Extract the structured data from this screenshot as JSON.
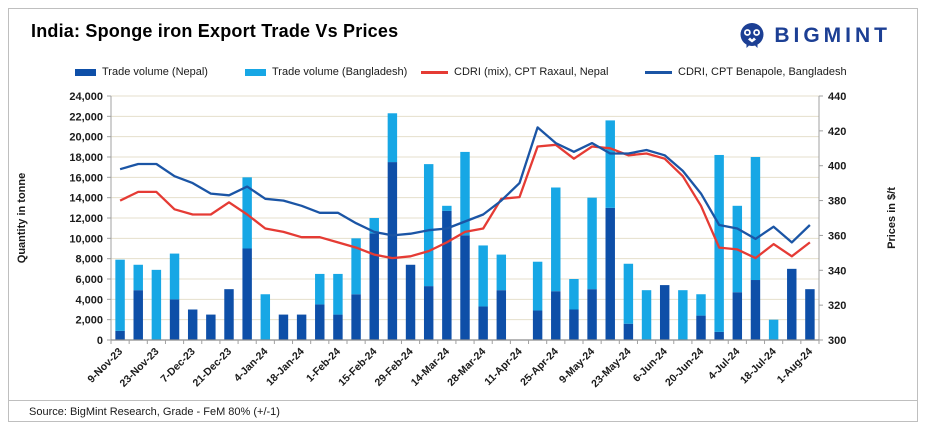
{
  "card": {
    "title": "India: Sponge iron Export Trade Vs Prices",
    "brand": {
      "logo_icon": "bigmint-mascot-icon",
      "logo_text": "BIGMINT"
    },
    "source_note": "Source: BigMint Research, Grade - FeM 80% (+/-1)"
  },
  "colors": {
    "nepal_bar": "#0E4FA8",
    "bangladesh_bar": "#17A7E5",
    "raxaul_line": "#E53B34",
    "benapole_line": "#1B55A5",
    "gridline": "#E5DFCC",
    "axis_line": "#A0A0A0",
    "text": "#1A1A1A",
    "logo_navy": "#1C3F94",
    "card_border": "#BFBFBF"
  },
  "legend": {
    "items": [
      {
        "label": "Trade volume (Nepal)",
        "marker": "bar",
        "color_key": "nepal_bar"
      },
      {
        "label": "Trade volume (Bangladesh)",
        "marker": "bar",
        "color_key": "bangladesh_bar"
      },
      {
        "label": "CDRI (mix), CPT Raxaul, Nepal",
        "marker": "line",
        "color_key": "raxaul_line"
      },
      {
        "label": "CDRI, CPT Benapole, Bangladesh",
        "marker": "line",
        "color_key": "benapole_line"
      }
    ]
  },
  "chart_data": {
    "type": "combo",
    "categories": [
      "9-Nov-23",
      "16-Nov-23",
      "23-Nov-23",
      "30-Nov-23",
      "7-Dec-23",
      "14-Dec-23",
      "21-Dec-23",
      "28-Dec-23",
      "4-Jan-24",
      "11-Jan-24",
      "18-Jan-24",
      "25-Jan-24",
      "1-Feb-24",
      "8-Feb-24",
      "15-Feb-24",
      "22-Feb-24",
      "29-Feb-24",
      "7-Mar-24",
      "14-Mar-24",
      "21-Mar-24",
      "28-Mar-24",
      "4-Apr-24",
      "11-Apr-24",
      "18-Apr-24",
      "25-Apr-24",
      "2-May-24",
      "9-May-24",
      "16-May-24",
      "23-May-24",
      "30-May-24",
      "6-Jun-24",
      "13-Jun-24",
      "20-Jun-24",
      "27-Jun-24",
      "4-Jul-24",
      "11-Jul-24",
      "18-Jul-24",
      "25-Jul-24",
      "1-Aug-24"
    ],
    "x_labels_every": 2,
    "x_labels_shown": [
      "9-Nov-23",
      "23-Nov-23",
      "7-Dec-23",
      "21-Dec-23",
      "4-Jan-24",
      "18-Jan-24",
      "1-Feb-24",
      "15-Feb-24",
      "29-Feb-24",
      "14-Mar-24",
      "28-Mar-24",
      "11-Apr-24",
      "25-Apr-24",
      "9-May-24",
      "23-May-24",
      "6-Jun-24",
      "20-Jun-24",
      "4-Jul-24",
      "18-Jul-24",
      "1-Aug-24"
    ],
    "series": [
      {
        "name": "Trade volume (Nepal)",
        "type": "bar",
        "stack": "volume",
        "axis": "left",
        "values": [
          900,
          4900,
          0,
          4000,
          3000,
          2500,
          5000,
          9000,
          0,
          2500,
          2500,
          3500,
          2500,
          4500,
          10500,
          17500,
          7400,
          5300,
          12700,
          10300,
          3300,
          4900,
          0,
          2900,
          4800,
          3000,
          5000,
          13000,
          1600,
          0,
          5400,
          0,
          2400,
          800,
          4700,
          5900,
          0,
          7000,
          5000
        ]
      },
      {
        "name": "Trade volume (Bangladesh)",
        "type": "bar",
        "stack": "volume",
        "axis": "left",
        "values": [
          7000,
          2500,
          6900,
          4500,
          0,
          0,
          0,
          7000,
          4500,
          0,
          0,
          3000,
          4000,
          5500,
          1500,
          4800,
          0,
          12000,
          500,
          8200,
          6000,
          3500,
          0,
          4800,
          10200,
          3000,
          9000,
          8600,
          5900,
          4900,
          0,
          4900,
          2100,
          17400,
          8500,
          12100,
          2000,
          0,
          0
        ]
      },
      {
        "name": "CDRI (mix), CPT Raxaul, Nepal",
        "type": "line",
        "axis": "right",
        "values": [
          380,
          385,
          385,
          375,
          372,
          372,
          379,
          372,
          364,
          362,
          359,
          359,
          356,
          353,
          349,
          347,
          348,
          351,
          356,
          362,
          364,
          381,
          382,
          411,
          412,
          404,
          411,
          410,
          406,
          407,
          404,
          394,
          377,
          353,
          352,
          347,
          355,
          348,
          356
        ]
      },
      {
        "name": "CDRI, CPT Benapole, Bangladesh",
        "type": "line",
        "axis": "right",
        "values": [
          398,
          401,
          401,
          394,
          390,
          384,
          383,
          388,
          381,
          380,
          377,
          373,
          373,
          367,
          362,
          360,
          361,
          363,
          364,
          368,
          372,
          380,
          390,
          422,
          413,
          408,
          413,
          407,
          407,
          409,
          406,
          397,
          384,
          366,
          364,
          358,
          365,
          356,
          366
        ]
      }
    ],
    "left_axis": {
      "label": "Quantity in tonne",
      "min": 0,
      "max": 24000,
      "step": 2000
    },
    "right_axis": {
      "label": "Prices in $/t",
      "min": 300,
      "max": 440,
      "step": 20
    },
    "grid": true,
    "legend_position": "top"
  }
}
